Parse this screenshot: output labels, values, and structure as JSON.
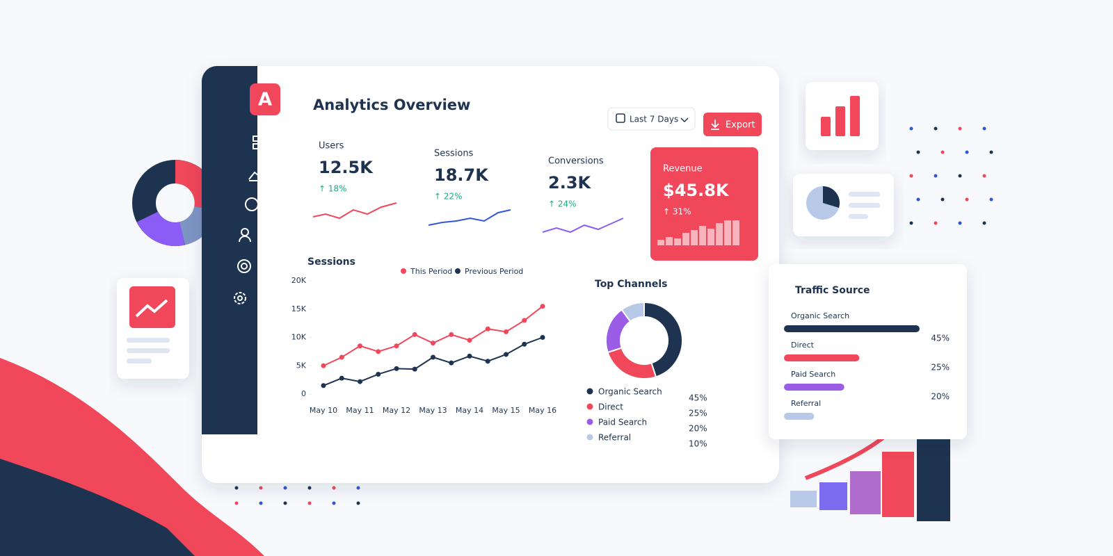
{
  "sidebar": {
    "logo": "A"
  },
  "header": {
    "title": "Analytics Overview",
    "date_range": "Last 7 Days",
    "export": "Export"
  },
  "kpis": [
    {
      "label": "Users",
      "value": "12.5K",
      "change": "↑ 18%"
    },
    {
      "label": "Sessions",
      "value": "18.7K",
      "change": "↑ 22%"
    },
    {
      "label": "Conversions",
      "value": "2.3K",
      "change": "↑ 24%"
    },
    {
      "label": "Revenue",
      "value": "$45.8K",
      "change": "↑ 31%"
    }
  ],
  "sessions_chart": {
    "type": "line",
    "title": "Sessions",
    "categories": [
      "May 10",
      null,
      "May 11",
      null,
      "May 12",
      null,
      "May 13",
      null,
      "May 14",
      null,
      "May 15",
      null,
      "May 16"
    ],
    "series": [
      {
        "name": "This Period",
        "color": "#f0475a",
        "values": [
          5000,
          6500,
          8500,
          7500,
          8500,
          10500,
          9000,
          10500,
          9500,
          11500,
          11000,
          13000,
          15500
        ]
      },
      {
        "name": "Previous Period",
        "color": "#1e3350",
        "values": [
          1500,
          2800,
          2200,
          3500,
          4500,
          4400,
          6500,
          5500,
          6700,
          5800,
          7000,
          8800,
          10000
        ]
      }
    ],
    "ylim": [
      0,
      20000
    ],
    "yticks": [
      0,
      {
        "value": 5000,
        "label": "5K"
      },
      {
        "value": 10000,
        "label": "10K"
      },
      {
        "value": 15000,
        "label": "15K"
      },
      {
        "value": 20000,
        "label": "20K"
      }
    ],
    "legend": "top"
  },
  "top_channels": {
    "type": "pie",
    "title": "Top Channels",
    "categories": [
      "Organic Search",
      "Direct",
      "Paid Search",
      "Referral"
    ],
    "values": [
      45,
      25,
      20,
      10
    ],
    "value_labels": [
      "45%",
      "25%",
      "20%",
      "10%"
    ],
    "colors": [
      "#1e3350",
      "#f0475a",
      "#9b5de5",
      "#b7c9e6"
    ],
    "donut": true
  },
  "traffic_source": {
    "type": "bar",
    "title": "Traffic Source",
    "categories": [
      "Organic Search",
      "Direct",
      "Paid Search",
      "Referral"
    ],
    "values": [
      45,
      25,
      20,
      10
    ],
    "value_labels": [
      "45%",
      "25%",
      "20%",
      null
    ],
    "colors": [
      "#1e3350",
      "#f0475a",
      "#9b5de5",
      "#b7c9e6"
    ],
    "xlim": [
      0,
      45
    ]
  }
}
